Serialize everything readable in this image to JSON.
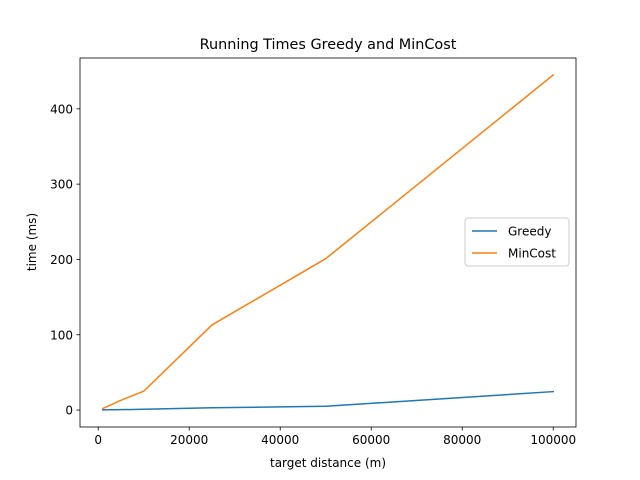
{
  "chart_data": {
    "type": "line",
    "title": "Running Times Greedy and MinCost",
    "xlabel": "target distance (m)",
    "ylabel": "time (ms)",
    "xlim": [
      -4000,
      105000
    ],
    "ylim": [
      -22.5,
      467.5
    ],
    "xticks": [
      0,
      20000,
      40000,
      60000,
      80000,
      100000
    ],
    "yticks": [
      0,
      100,
      200,
      300,
      400
    ],
    "grid": false,
    "legend_position": "center-right",
    "series": [
      {
        "name": "Greedy",
        "color": "#1f77b4",
        "x": [
          1000,
          5000,
          10000,
          25000,
          50000,
          100000
        ],
        "y": [
          0.2,
          0.5,
          1,
          3,
          5,
          24.5
        ]
      },
      {
        "name": "MinCost",
        "color": "#ff7f0e",
        "x": [
          1000,
          5000,
          10000,
          25000,
          50000,
          100000
        ],
        "y": [
          2,
          13,
          25,
          113,
          201,
          445
        ]
      }
    ]
  }
}
